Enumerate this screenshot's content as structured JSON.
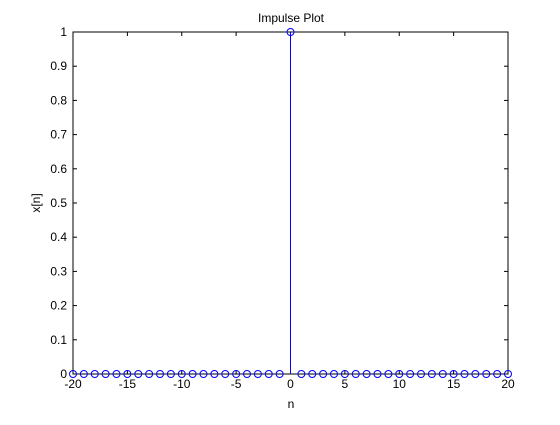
{
  "chart_data": {
    "type": "stem",
    "title": "Impulse Plot",
    "xlabel": "n",
    "ylabel": "x[n]",
    "xlim": [
      -20,
      20
    ],
    "ylim": [
      0,
      1
    ],
    "xticks": [
      -20,
      -15,
      -10,
      -5,
      0,
      5,
      10,
      15,
      20
    ],
    "xtick_labels": [
      "-20",
      "-15",
      "-10",
      "-5",
      "0",
      "5",
      "10",
      "15",
      "20"
    ],
    "yticks": [
      0,
      0.1,
      0.2,
      0.3,
      0.4,
      0.5,
      0.6,
      0.7,
      0.8,
      0.9,
      1
    ],
    "ytick_labels": [
      "0",
      "0.1",
      "0.2",
      "0.3",
      "0.4",
      "0.5",
      "0.6",
      "0.7",
      "0.8",
      "0.9",
      "1"
    ],
    "grid": false,
    "series": [
      {
        "color": "#0000ff",
        "marker": "circle-open",
        "x": [
          -20,
          -19,
          -18,
          -17,
          -16,
          -15,
          -14,
          -13,
          -12,
          -11,
          -10,
          -9,
          -8,
          -7,
          -6,
          -5,
          -4,
          -3,
          -2,
          -1,
          0,
          1,
          2,
          3,
          4,
          5,
          6,
          7,
          8,
          9,
          10,
          11,
          12,
          13,
          14,
          15,
          16,
          17,
          18,
          19,
          20
        ],
        "y": [
          0,
          0,
          0,
          0,
          0,
          0,
          0,
          0,
          0,
          0,
          0,
          0,
          0,
          0,
          0,
          0,
          0,
          0,
          0,
          0,
          1,
          0,
          0,
          0,
          0,
          0,
          0,
          0,
          0,
          0,
          0,
          0,
          0,
          0,
          0,
          0,
          0,
          0,
          0,
          0,
          0
        ]
      }
    ]
  }
}
